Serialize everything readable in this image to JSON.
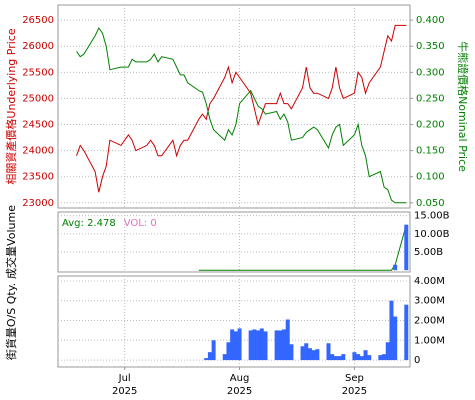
{
  "chart_data": [
    {
      "type": "line",
      "ylabel": "相關資產價格Underlying Price",
      "y2label": "牛熊證價格Nominal Price",
      "ylabel_color": "#cc0000",
      "y2label_color": "#008000",
      "ytick_side": "left",
      "x": [
        -13,
        -12,
        -11,
        -8,
        -7,
        -6,
        -5,
        -4,
        -1,
        1,
        2,
        3,
        6,
        7,
        8,
        9,
        10,
        13,
        14,
        15,
        16,
        17,
        20,
        21,
        22,
        23,
        24,
        27,
        28,
        29,
        30,
        31,
        34,
        35,
        36,
        37,
        38,
        41,
        42,
        43,
        44,
        45,
        48,
        49,
        50,
        51,
        52,
        55,
        56,
        57,
        58,
        59,
        62,
        63,
        64,
        65,
        66,
        69,
        70,
        71,
        72,
        73,
        76
      ],
      "series": [
        {
          "color": "#cc0000",
          "axis": "y",
          "values": [
            23900,
            24100,
            24000,
            23600,
            23200,
            23500,
            23700,
            24200,
            24100,
            24300,
            24200,
            24000,
            24100,
            24200,
            24100,
            23900,
            23900,
            24200,
            23900,
            24100,
            24200,
            24200,
            24600,
            24700,
            24600,
            24900,
            25000,
            25400,
            25600,
            25300,
            25500,
            25400,
            25100,
            24800,
            24500,
            24700,
            24900,
            24900,
            25100,
            24900,
            24900,
            24800,
            25200,
            25600,
            25200,
            25100,
            25100,
            25000,
            25200,
            25600,
            25200,
            25000,
            25100,
            25500,
            25400,
            25100,
            25300,
            25600,
            25900,
            26200,
            26100,
            26400,
            26400
          ]
        },
        {
          "color": "#008000",
          "axis": "y2",
          "values": [
            0.34,
            0.33,
            0.335,
            0.37,
            0.385,
            0.375,
            0.35,
            0.305,
            0.31,
            0.31,
            0.325,
            0.32,
            0.32,
            0.325,
            0.335,
            0.32,
            0.33,
            0.325,
            0.31,
            0.295,
            0.295,
            0.28,
            0.265,
            0.262,
            0.24,
            0.21,
            0.19,
            0.17,
            0.19,
            0.18,
            0.2,
            0.24,
            0.265,
            0.25,
            0.235,
            0.23,
            0.22,
            0.225,
            0.21,
            0.22,
            0.205,
            0.17,
            0.175,
            0.185,
            0.19,
            0.195,
            0.19,
            0.155,
            0.18,
            0.195,
            0.2,
            0.16,
            0.18,
            0.2,
            0.16,
            0.14,
            0.1,
            0.11,
            0.08,
            0.075,
            0.055,
            0.05,
            0.05
          ]
        }
      ],
      "ylim": [
        22900,
        26790
      ],
      "yticks": [
        23000,
        23500,
        24000,
        24500,
        25000,
        25500,
        26000,
        26500
      ],
      "y2lim": [
        0.04,
        0.429
      ],
      "y2ticks": [
        {
          "value": 0.05,
          "label": "0.050"
        },
        {
          "value": 0.1,
          "label": "0.100"
        },
        {
          "value": 0.15,
          "label": "0.150"
        },
        {
          "value": 0.2,
          "label": "0.200"
        },
        {
          "value": 0.25,
          "label": "0.250"
        },
        {
          "value": 0.3,
          "label": "0.300"
        },
        {
          "value": 0.35,
          "label": "0.350"
        },
        {
          "value": 0.4,
          "label": "0.400"
        }
      ],
      "grid": true
    },
    {
      "type": "bar",
      "ylabel": "成交量Volume",
      "ytick_side": "right",
      "color": "#3366ff",
      "line_color": "#008000",
      "annotations": [
        {
          "text": "Avg: 2.478",
          "color": "#008000"
        },
        {
          "text": "VOL: 0",
          "color": "#e070c0"
        }
      ],
      "x": [
        20,
        21,
        22,
        23,
        24,
        27,
        28,
        29,
        30,
        31,
        34,
        35,
        36,
        37,
        38,
        41,
        42,
        43,
        44,
        45,
        48,
        49,
        50,
        51,
        52,
        55,
        56,
        57,
        58,
        59,
        62,
        63,
        64,
        65,
        66,
        69,
        70,
        71,
        72,
        73,
        76
      ],
      "values": [
        0,
        0,
        0,
        0,
        0,
        0,
        0,
        0,
        0,
        0,
        0,
        0,
        0,
        0,
        0,
        0,
        0,
        0,
        0,
        0,
        0,
        0,
        0,
        0,
        0,
        0,
        0,
        0,
        0,
        0,
        0,
        0,
        0,
        0,
        0,
        0,
        0,
        0,
        0,
        1.5,
        12.5
      ],
      "ylim": [
        -0.5,
        16
      ],
      "yticks": [
        {
          "value": 5,
          "label": "5.00B"
        },
        {
          "value": 10,
          "label": "10.00B"
        },
        {
          "value": 15,
          "label": "15.00B"
        }
      ],
      "grid": true
    },
    {
      "type": "bar",
      "ylabel": "街貨量O/S Qty.",
      "ytick_side": "right",
      "color": "#3366ff",
      "x": [
        22,
        23,
        24,
        27,
        28,
        29,
        30,
        31,
        34,
        35,
        36,
        37,
        38,
        41,
        42,
        43,
        44,
        45,
        48,
        49,
        50,
        51,
        52,
        55,
        56,
        57,
        58,
        59,
        62,
        63,
        64,
        65,
        66,
        69,
        70,
        71,
        72,
        73,
        76
      ],
      "values": [
        0.1,
        0.4,
        1.0,
        0.3,
        0.9,
        1.55,
        1.45,
        1.6,
        1.5,
        1.55,
        1.5,
        1.6,
        1.45,
        1.5,
        1.5,
        1.55,
        2.05,
        0.8,
        0.7,
        0.85,
        0.6,
        0.5,
        0.55,
        0.85,
        0.3,
        0.2,
        0.2,
        0.3,
        0.4,
        0.3,
        0.2,
        0.5,
        0.25,
        0.25,
        0.3,
        0.9,
        3.0,
        2.2,
        2.8
      ],
      "ylim": [
        -0.35,
        4.25
      ],
      "yticks": [
        0,
        {
          "value": 1,
          "label": "1.00M"
        },
        {
          "value": 2,
          "label": "2.00M"
        },
        {
          "value": 3,
          "label": "3.00M"
        },
        {
          "value": 4,
          "label": "4.00M"
        }
      ],
      "xlim": [
        -18,
        77
      ],
      "xticks": [
        {
          "value": 0,
          "label": "Jul",
          "year": "2025"
        },
        {
          "value": 31,
          "label": "Aug",
          "year": "2025"
        },
        {
          "value": 62,
          "label": "Sep",
          "year": "2025"
        }
      ],
      "grid": true
    }
  ]
}
